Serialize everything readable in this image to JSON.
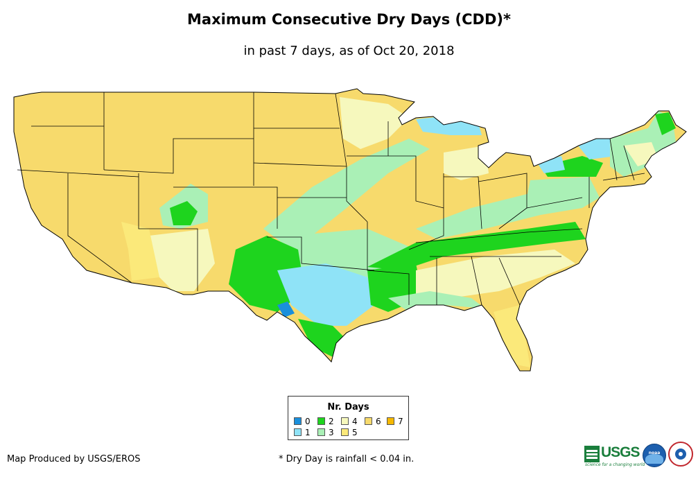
{
  "title": "Maximum Consecutive Dry Days (CDD)*",
  "subtitle": "in past 7 days, as of Oct 20, 2018",
  "legend": {
    "title": "Nr. Days",
    "items": [
      {
        "label": "0",
        "color": "#1a8fdc"
      },
      {
        "label": "1",
        "color": "#8fe3f7"
      },
      {
        "label": "2",
        "color": "#1ed41e"
      },
      {
        "label": "3",
        "color": "#aaf0b6"
      },
      {
        "label": "4",
        "color": "#f6f8bd"
      },
      {
        "label": "5",
        "color": "#fbe97a"
      },
      {
        "label": "6",
        "color": "#f7da6c"
      },
      {
        "label": "7",
        "color": "#f5b800"
      }
    ]
  },
  "footer": {
    "credit": "Map Produced by USGS/EROS",
    "footnote": "* Dry Day is rainfall < 0.04 in.",
    "usgs_logo": "USGS",
    "usgs_tagline": "science for a changing world",
    "noaa_logo": "noaa",
    "nws_logo": "nws-logo-icon"
  },
  "map": {
    "base_color": "#f7da6c",
    "border_color": "#000000"
  }
}
